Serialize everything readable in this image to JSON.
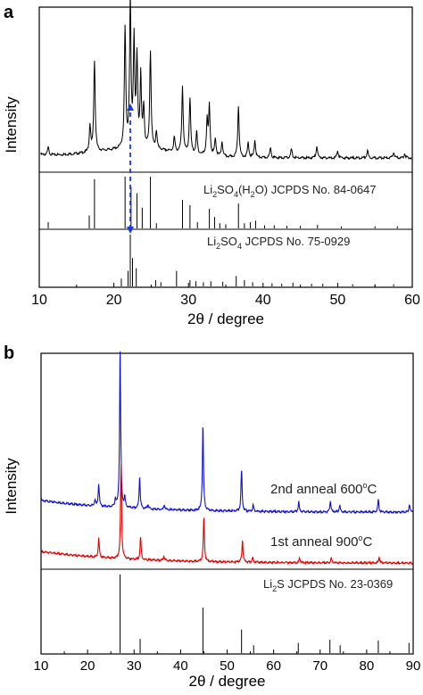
{
  "chart_data": [
    {
      "panel_label": "a",
      "type": "line",
      "xlabel": "2θ / degree",
      "ylabel": "Intensity",
      "xlim": [
        10,
        60
      ],
      "xticks": [
        10,
        20,
        30,
        40,
        50,
        60
      ],
      "grid": false,
      "measured_series": {
        "color": "#000000",
        "peaks": [
          {
            "x": 11.2,
            "y": 0.05
          },
          {
            "x": 16.8,
            "y": 0.18
          },
          {
            "x": 17.4,
            "y": 0.62
          },
          {
            "x": 21.5,
            "y": 0.81
          },
          {
            "x": 22.2,
            "y": 1.0
          },
          {
            "x": 22.7,
            "y": 0.72
          },
          {
            "x": 23.1,
            "y": 0.59
          },
          {
            "x": 23.6,
            "y": 0.48
          },
          {
            "x": 24.0,
            "y": 0.27
          },
          {
            "x": 24.9,
            "y": 0.66
          },
          {
            "x": 25.7,
            "y": 0.12
          },
          {
            "x": 28.1,
            "y": 0.1
          },
          {
            "x": 29.2,
            "y": 0.45
          },
          {
            "x": 30.2,
            "y": 0.38
          },
          {
            "x": 31.1,
            "y": 0.15
          },
          {
            "x": 32.5,
            "y": 0.23
          },
          {
            "x": 32.8,
            "y": 0.33
          },
          {
            "x": 33.6,
            "y": 0.12
          },
          {
            "x": 34.5,
            "y": 0.1
          },
          {
            "x": 36.7,
            "y": 0.35
          },
          {
            "x": 38.0,
            "y": 0.1
          },
          {
            "x": 38.9,
            "y": 0.12
          },
          {
            "x": 41.0,
            "y": 0.07
          },
          {
            "x": 43.8,
            "y": 0.06
          },
          {
            "x": 47.2,
            "y": 0.08
          },
          {
            "x": 50.0,
            "y": 0.05
          },
          {
            "x": 54.0,
            "y": 0.05
          },
          {
            "x": 57.5,
            "y": 0.04
          },
          {
            "x": 59.0,
            "y": 0.03
          }
        ]
      },
      "reference_patterns": [
        {
          "label_parts": [
            "Li",
            "2",
            "SO",
            "4",
            "(H",
            "2",
            "O) JCPDS No. 84-0647"
          ],
          "sticks": [
            {
              "x": 11.2,
              "y": 0.12
            },
            {
              "x": 16.7,
              "y": 0.25
            },
            {
              "x": 17.4,
              "y": 0.95
            },
            {
              "x": 21.5,
              "y": 1.0
            },
            {
              "x": 22.3,
              "y": 0.8
            },
            {
              "x": 23.1,
              "y": 0.68
            },
            {
              "x": 23.8,
              "y": 0.4
            },
            {
              "x": 24.9,
              "y": 1.0
            },
            {
              "x": 25.7,
              "y": 0.1
            },
            {
              "x": 29.2,
              "y": 0.55
            },
            {
              "x": 30.2,
              "y": 0.45
            },
            {
              "x": 31.2,
              "y": 0.12
            },
            {
              "x": 32.8,
              "y": 0.38
            },
            {
              "x": 33.5,
              "y": 0.22
            },
            {
              "x": 34.2,
              "y": 0.1
            },
            {
              "x": 35.0,
              "y": 0.08
            },
            {
              "x": 36.7,
              "y": 0.48
            },
            {
              "x": 37.5,
              "y": 0.1
            },
            {
              "x": 38.3,
              "y": 0.12
            },
            {
              "x": 39.0,
              "y": 0.15
            },
            {
              "x": 40.2,
              "y": 0.06
            },
            {
              "x": 41.5,
              "y": 0.06
            },
            {
              "x": 43.2,
              "y": 0.05
            },
            {
              "x": 45.0,
              "y": 0.05
            },
            {
              "x": 47.3,
              "y": 0.07
            },
            {
              "x": 50.5,
              "y": 0.04
            },
            {
              "x": 55.0,
              "y": 0.04
            },
            {
              "x": 58.0,
              "y": 0.04
            }
          ]
        },
        {
          "label_parts": [
            "Li",
            "2",
            "SO",
            "4",
            " JCPDS No. 75-0929"
          ],
          "sticks": [
            {
              "x": 21.0,
              "y": 0.15
            },
            {
              "x": 21.9,
              "y": 0.3
            },
            {
              "x": 22.2,
              "y": 1.0
            },
            {
              "x": 22.5,
              "y": 0.55
            },
            {
              "x": 23.0,
              "y": 0.35
            },
            {
              "x": 25.6,
              "y": 0.12
            },
            {
              "x": 26.3,
              "y": 0.08
            },
            {
              "x": 28.4,
              "y": 0.3
            },
            {
              "x": 30.2,
              "y": 0.12
            },
            {
              "x": 31.0,
              "y": 0.1
            },
            {
              "x": 32.0,
              "y": 0.08
            },
            {
              "x": 33.0,
              "y": 0.1
            },
            {
              "x": 34.6,
              "y": 0.09
            },
            {
              "x": 36.4,
              "y": 0.2
            },
            {
              "x": 37.5,
              "y": 0.12
            },
            {
              "x": 38.6,
              "y": 0.08
            },
            {
              "x": 41.2,
              "y": 0.06
            },
            {
              "x": 42.5,
              "y": 0.05
            },
            {
              "x": 44.0,
              "y": 0.07
            },
            {
              "x": 46.5,
              "y": 0.05
            },
            {
              "x": 48.0,
              "y": 0.05
            },
            {
              "x": 52.0,
              "y": 0.04
            },
            {
              "x": 55.0,
              "y": 0.04
            },
            {
              "x": 57.5,
              "y": 0.04
            }
          ]
        }
      ],
      "annotation": {
        "type": "dashed-double-arrow",
        "x": 22.2,
        "color": "#1a3be0"
      }
    },
    {
      "panel_label": "b",
      "type": "line",
      "xlabel": "2θ / degree",
      "ylabel": "Intensity",
      "xlim": [
        10,
        90
      ],
      "xticks": [
        10,
        20,
        30,
        40,
        50,
        60,
        70,
        80,
        90
      ],
      "grid": false,
      "series": [
        {
          "label_parts": [
            "2nd anneal 600",
            "o",
            "C"
          ],
          "color": "#1010d0",
          "peaks": [
            {
              "x": 21.6,
              "y": 0.04
            },
            {
              "x": 22.4,
              "y": 0.14
            },
            {
              "x": 26.0,
              "y": 0.05
            },
            {
              "x": 27.0,
              "y": 1.0
            },
            {
              "x": 28.0,
              "y": 0.06
            },
            {
              "x": 31.2,
              "y": 0.2
            },
            {
              "x": 33.0,
              "y": 0.03
            },
            {
              "x": 36.5,
              "y": 0.03
            },
            {
              "x": 44.8,
              "y": 0.54
            },
            {
              "x": 53.1,
              "y": 0.26
            },
            {
              "x": 55.6,
              "y": 0.04
            },
            {
              "x": 65.4,
              "y": 0.06
            },
            {
              "x": 72.2,
              "y": 0.07
            },
            {
              "x": 74.2,
              "y": 0.04
            },
            {
              "x": 82.5,
              "y": 0.08
            },
            {
              "x": 89.2,
              "y": 0.05
            }
          ]
        },
        {
          "label_parts": [
            "1st anneal 900",
            "o",
            "C"
          ],
          "color": "#e00000",
          "peaks": [
            {
              "x": 22.4,
              "y": 0.12
            },
            {
              "x": 27.2,
              "y": 0.6
            },
            {
              "x": 31.4,
              "y": 0.14
            },
            {
              "x": 36.4,
              "y": 0.03
            },
            {
              "x": 45.0,
              "y": 0.28
            },
            {
              "x": 53.3,
              "y": 0.14
            },
            {
              "x": 55.5,
              "y": 0.03
            },
            {
              "x": 65.6,
              "y": 0.03
            },
            {
              "x": 72.4,
              "y": 0.03
            },
            {
              "x": 82.7,
              "y": 0.04
            }
          ]
        }
      ],
      "reference_patterns": [
        {
          "label_parts": [
            "Li",
            "2",
            "S JCPDS No. 23-0369"
          ],
          "sticks": [
            {
              "x": 27.0,
              "y": 1.0
            },
            {
              "x": 31.3,
              "y": 0.18
            },
            {
              "x": 44.8,
              "y": 0.58
            },
            {
              "x": 53.1,
              "y": 0.3
            },
            {
              "x": 55.7,
              "y": 0.1
            },
            {
              "x": 65.3,
              "y": 0.13
            },
            {
              "x": 72.1,
              "y": 0.17
            },
            {
              "x": 74.3,
              "y": 0.1
            },
            {
              "x": 82.5,
              "y": 0.16
            },
            {
              "x": 89.1,
              "y": 0.13
            }
          ]
        }
      ]
    }
  ]
}
